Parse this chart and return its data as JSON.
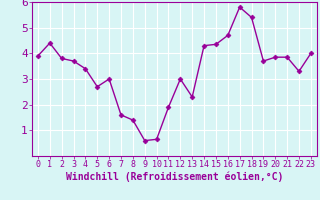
{
  "x": [
    0,
    1,
    2,
    3,
    4,
    5,
    6,
    7,
    8,
    9,
    10,
    11,
    12,
    13,
    14,
    15,
    16,
    17,
    18,
    19,
    20,
    21,
    22,
    23
  ],
  "y": [
    3.9,
    4.4,
    3.8,
    3.7,
    3.4,
    2.7,
    3.0,
    1.6,
    1.4,
    0.6,
    0.65,
    1.9,
    3.0,
    2.3,
    4.3,
    4.35,
    4.7,
    5.8,
    5.4,
    3.7,
    3.85,
    3.85,
    3.3,
    4.0
  ],
  "line_color": "#990099",
  "marker": "D",
  "marker_size": 2.5,
  "line_width": 1.0,
  "bg_color": "#d8f5f5",
  "grid_color": "#ffffff",
  "xlabel": "Windchill (Refroidissement éolien,°C)",
  "xlabel_color": "#990099",
  "tick_label_color": "#990099",
  "axis_label_fontsize": 7,
  "tick_fontsize": 6,
  "ylim": [
    0,
    6
  ],
  "xlim": [
    -0.5,
    23.5
  ],
  "yticks": [
    1,
    2,
    3,
    4,
    5,
    6
  ],
  "xticks": [
    0,
    1,
    2,
    3,
    4,
    5,
    6,
    7,
    8,
    9,
    10,
    11,
    12,
    13,
    14,
    15,
    16,
    17,
    18,
    19,
    20,
    21,
    22,
    23
  ]
}
